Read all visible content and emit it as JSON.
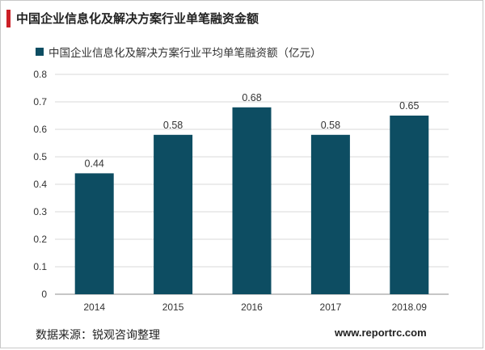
{
  "header": {
    "title": "中国企业信息化及解决方案行业单笔融资金额"
  },
  "colors": {
    "accent": "#cc2027",
    "bar": "#0d4d62",
    "grid": "#d9d9d9",
    "axis": "#8c8c8c"
  },
  "chart_data": {
    "type": "bar",
    "categories": [
      "2014",
      "2015",
      "2016",
      "2017",
      "2018.09"
    ],
    "series": [
      {
        "name": "中国企业信息化及解决方案行业平均单笔融资额（亿元）",
        "values": [
          0.44,
          0.58,
          0.68,
          0.58,
          0.65
        ]
      }
    ],
    "ylim": [
      0,
      0.8
    ],
    "yticks": [
      "0",
      "0.1",
      "0.2",
      "0.3",
      "0.4",
      "0.5",
      "0.6",
      "0.7",
      "0.8"
    ],
    "grid": true,
    "legend": "top-left",
    "data_labels": [
      "0.44",
      "0.58",
      "0.68",
      "0.58",
      "0.65"
    ]
  },
  "footer": {
    "source": "数据来源：锐观咨询整理",
    "site": "www.reportrc.com"
  }
}
